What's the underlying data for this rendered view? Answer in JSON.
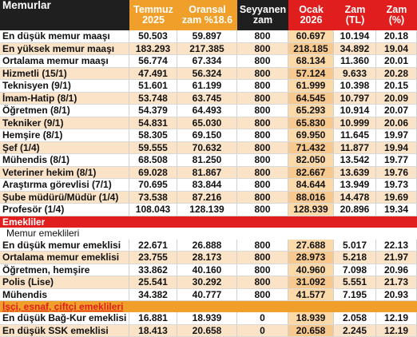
{
  "headers": [
    "Memurlar",
    "Temmuz 2025",
    "Oransal zam %18.6",
    "Seyyanen zam",
    "Ocak 2026",
    "Zam (TL)",
    "Zam (%)"
  ],
  "memurlar": [
    [
      "En düşük memur maaşı",
      "50.503",
      "59.897",
      "800",
      "60.697",
      "10.194",
      "20.18"
    ],
    [
      "En yüksek memur maaşı",
      "183.293",
      "217.385",
      "800",
      "218.185",
      "34.892",
      "19.04"
    ],
    [
      "Ortalama memur maaşı",
      "56.774",
      "67.334",
      "800",
      "68.134",
      "11.360",
      "20.01"
    ],
    [
      "Hizmetli (15/1)",
      "47.491",
      "56.324",
      "800",
      "57.124",
      "9.633",
      "20.28"
    ],
    [
      "Teknisyen (9/1)",
      "51.601",
      "61.199",
      "800",
      "61.999",
      "10.398",
      "20.15"
    ],
    [
      "İmam-Hatip (8/1)",
      "53.748",
      "63.745",
      "800",
      "64.545",
      "10.797",
      "20.09"
    ],
    [
      "Öğretmen (8/1)",
      "54.379",
      "64.493",
      "800",
      "65.293",
      "10.914",
      "20.07"
    ],
    [
      "Tekniker (9/1)",
      "54.831",
      "65.030",
      "800",
      "65.830",
      "10.999",
      "20.06"
    ],
    [
      "Hemşire (8/1)",
      "58.305",
      "69.150",
      "800",
      "69.950",
      "11.645",
      "19.97"
    ],
    [
      "Şef (1/4)",
      "59.555",
      "70.632",
      "800",
      "71.432",
      "11.877",
      "19.94"
    ],
    [
      "Mühendis (8/1)",
      "68.508",
      "81.250",
      "800",
      "82.050",
      "13.542",
      "19.77"
    ],
    [
      "Veteriner hekim (8/1)",
      "69.028",
      "81.867",
      "800",
      "82.667",
      "13.639",
      "19.76"
    ],
    [
      "Araştırma görevlisi (7/1)",
      "70.695",
      "83.844",
      "800",
      "84.644",
      "13.949",
      "19.73"
    ],
    [
      "Şube müdürü/Müdür (1/4)",
      "73.538",
      "87.216",
      "800",
      "88.016",
      "14.478",
      "19.69"
    ],
    [
      "Profesör (1/4)",
      "108.043",
      "128.139",
      "800",
      "128.939",
      "20.896",
      "19.34"
    ]
  ],
  "emekliler_title": "Emekliler",
  "memur_emeklileri_title": "Memur emeklileri",
  "memur_emeklileri": [
    [
      "En düşük memur emeklisi",
      "22.671",
      "26.888",
      "800",
      "27.688",
      "5.017",
      "22.13"
    ],
    [
      "Ortalama memur emeklisi",
      "23.755",
      "28.173",
      "800",
      "28.973",
      "5.218",
      "21.97"
    ],
    [
      "Öğretmen, hemşire",
      "33.862",
      "40.160",
      "800",
      "40.960",
      "7.098",
      "20.96"
    ],
    [
      "Polis (Lise)",
      "25.541",
      "30.292",
      "800",
      "31.092",
      "5.551",
      "21.73"
    ],
    [
      "Mühendis",
      "34.382",
      "40.777",
      "800",
      "41.577",
      "7.195",
      "20.93"
    ]
  ],
  "isci_title": "İşçi, esnaf, çiftçi emeklileri",
  "isci_emeklileri": [
    [
      "En düşük Bağ-Kur emeklisi",
      "16.881",
      "18.939",
      "0",
      "18.939",
      "2.058",
      "12.19"
    ],
    [
      "En düşük SSK emeklisi",
      "18.413",
      "20.658",
      "0",
      "20.658",
      "2.245",
      "12.19"
    ]
  ]
}
